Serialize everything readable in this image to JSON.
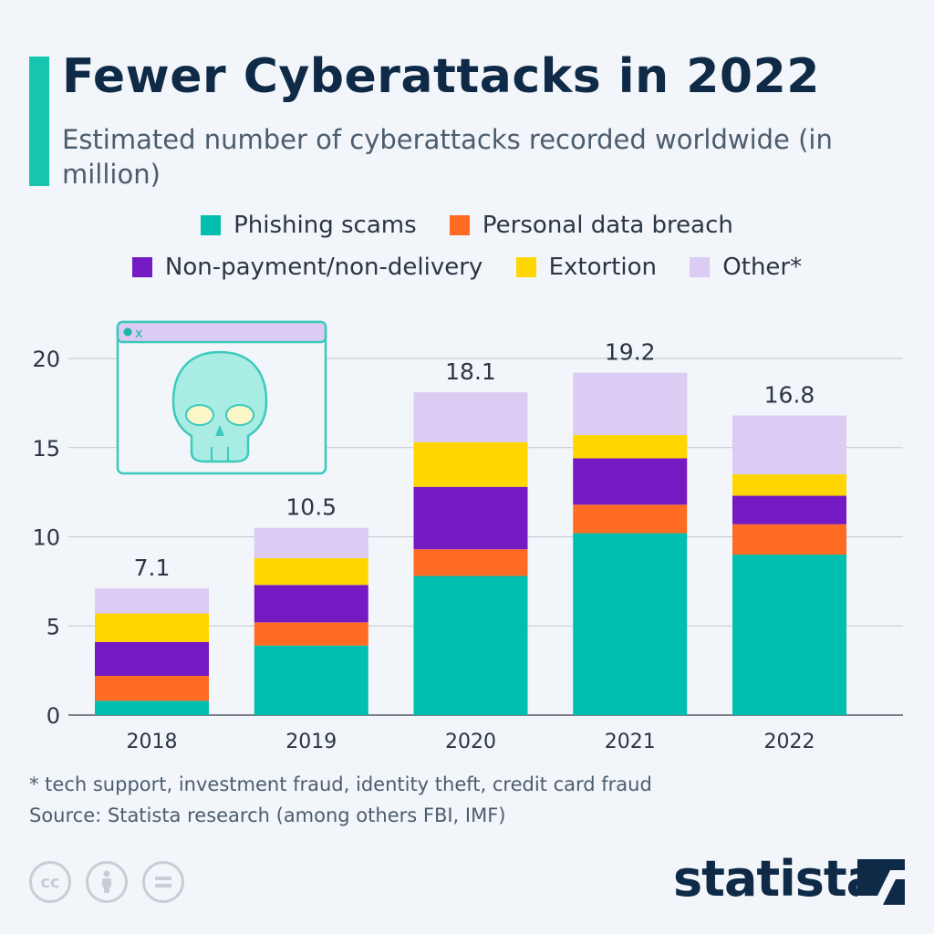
{
  "header": {
    "title": "Fewer Cyberattacks in 2022",
    "subtitle": "Estimated number of cyberattacks recorded worldwide (in million)"
  },
  "chart_data": {
    "type": "bar",
    "stacked": true,
    "title": "Fewer Cyberattacks in 2022",
    "subtitle": "Estimated number of cyberattacks recorded worldwide (in million)",
    "categories": [
      "2018",
      "2019",
      "2020",
      "2021",
      "2022"
    ],
    "series": [
      {
        "name": "Phishing scams",
        "color": "#00bfae",
        "values": [
          0.8,
          3.9,
          7.8,
          10.2,
          9.0
        ]
      },
      {
        "name": "Personal data breach",
        "color": "#ff6b22",
        "values": [
          1.4,
          1.3,
          1.5,
          1.6,
          1.7
        ]
      },
      {
        "name": "Non-payment/non-delivery",
        "color": "#7519c2",
        "values": [
          1.9,
          2.1,
          3.5,
          2.6,
          1.6
        ]
      },
      {
        "name": "Extortion",
        "color": "#ffd600",
        "values": [
          1.6,
          1.5,
          2.5,
          1.3,
          1.2
        ]
      },
      {
        "name": "Other*",
        "color": "#dccbf2",
        "values": [
          1.4,
          1.7,
          2.8,
          3.5,
          3.3
        ]
      }
    ],
    "totals": [
      "7.1",
      "10.5",
      "18.1",
      "19.2",
      "16.8"
    ],
    "yticks": [
      "0",
      "5",
      "10",
      "15",
      "20"
    ],
    "ylim": [
      0,
      20
    ],
    "grid": true,
    "legend_position": "top"
  },
  "footer": {
    "note": "* tech support, investment fraud, identity theft, credit card fraud",
    "source": "Source: Statista research (among others FBI, IMF)",
    "cc_label": "cc",
    "logo_text": "statista"
  },
  "illustration": {
    "icon": "skull-browser-window-icon",
    "window_close": "x"
  }
}
